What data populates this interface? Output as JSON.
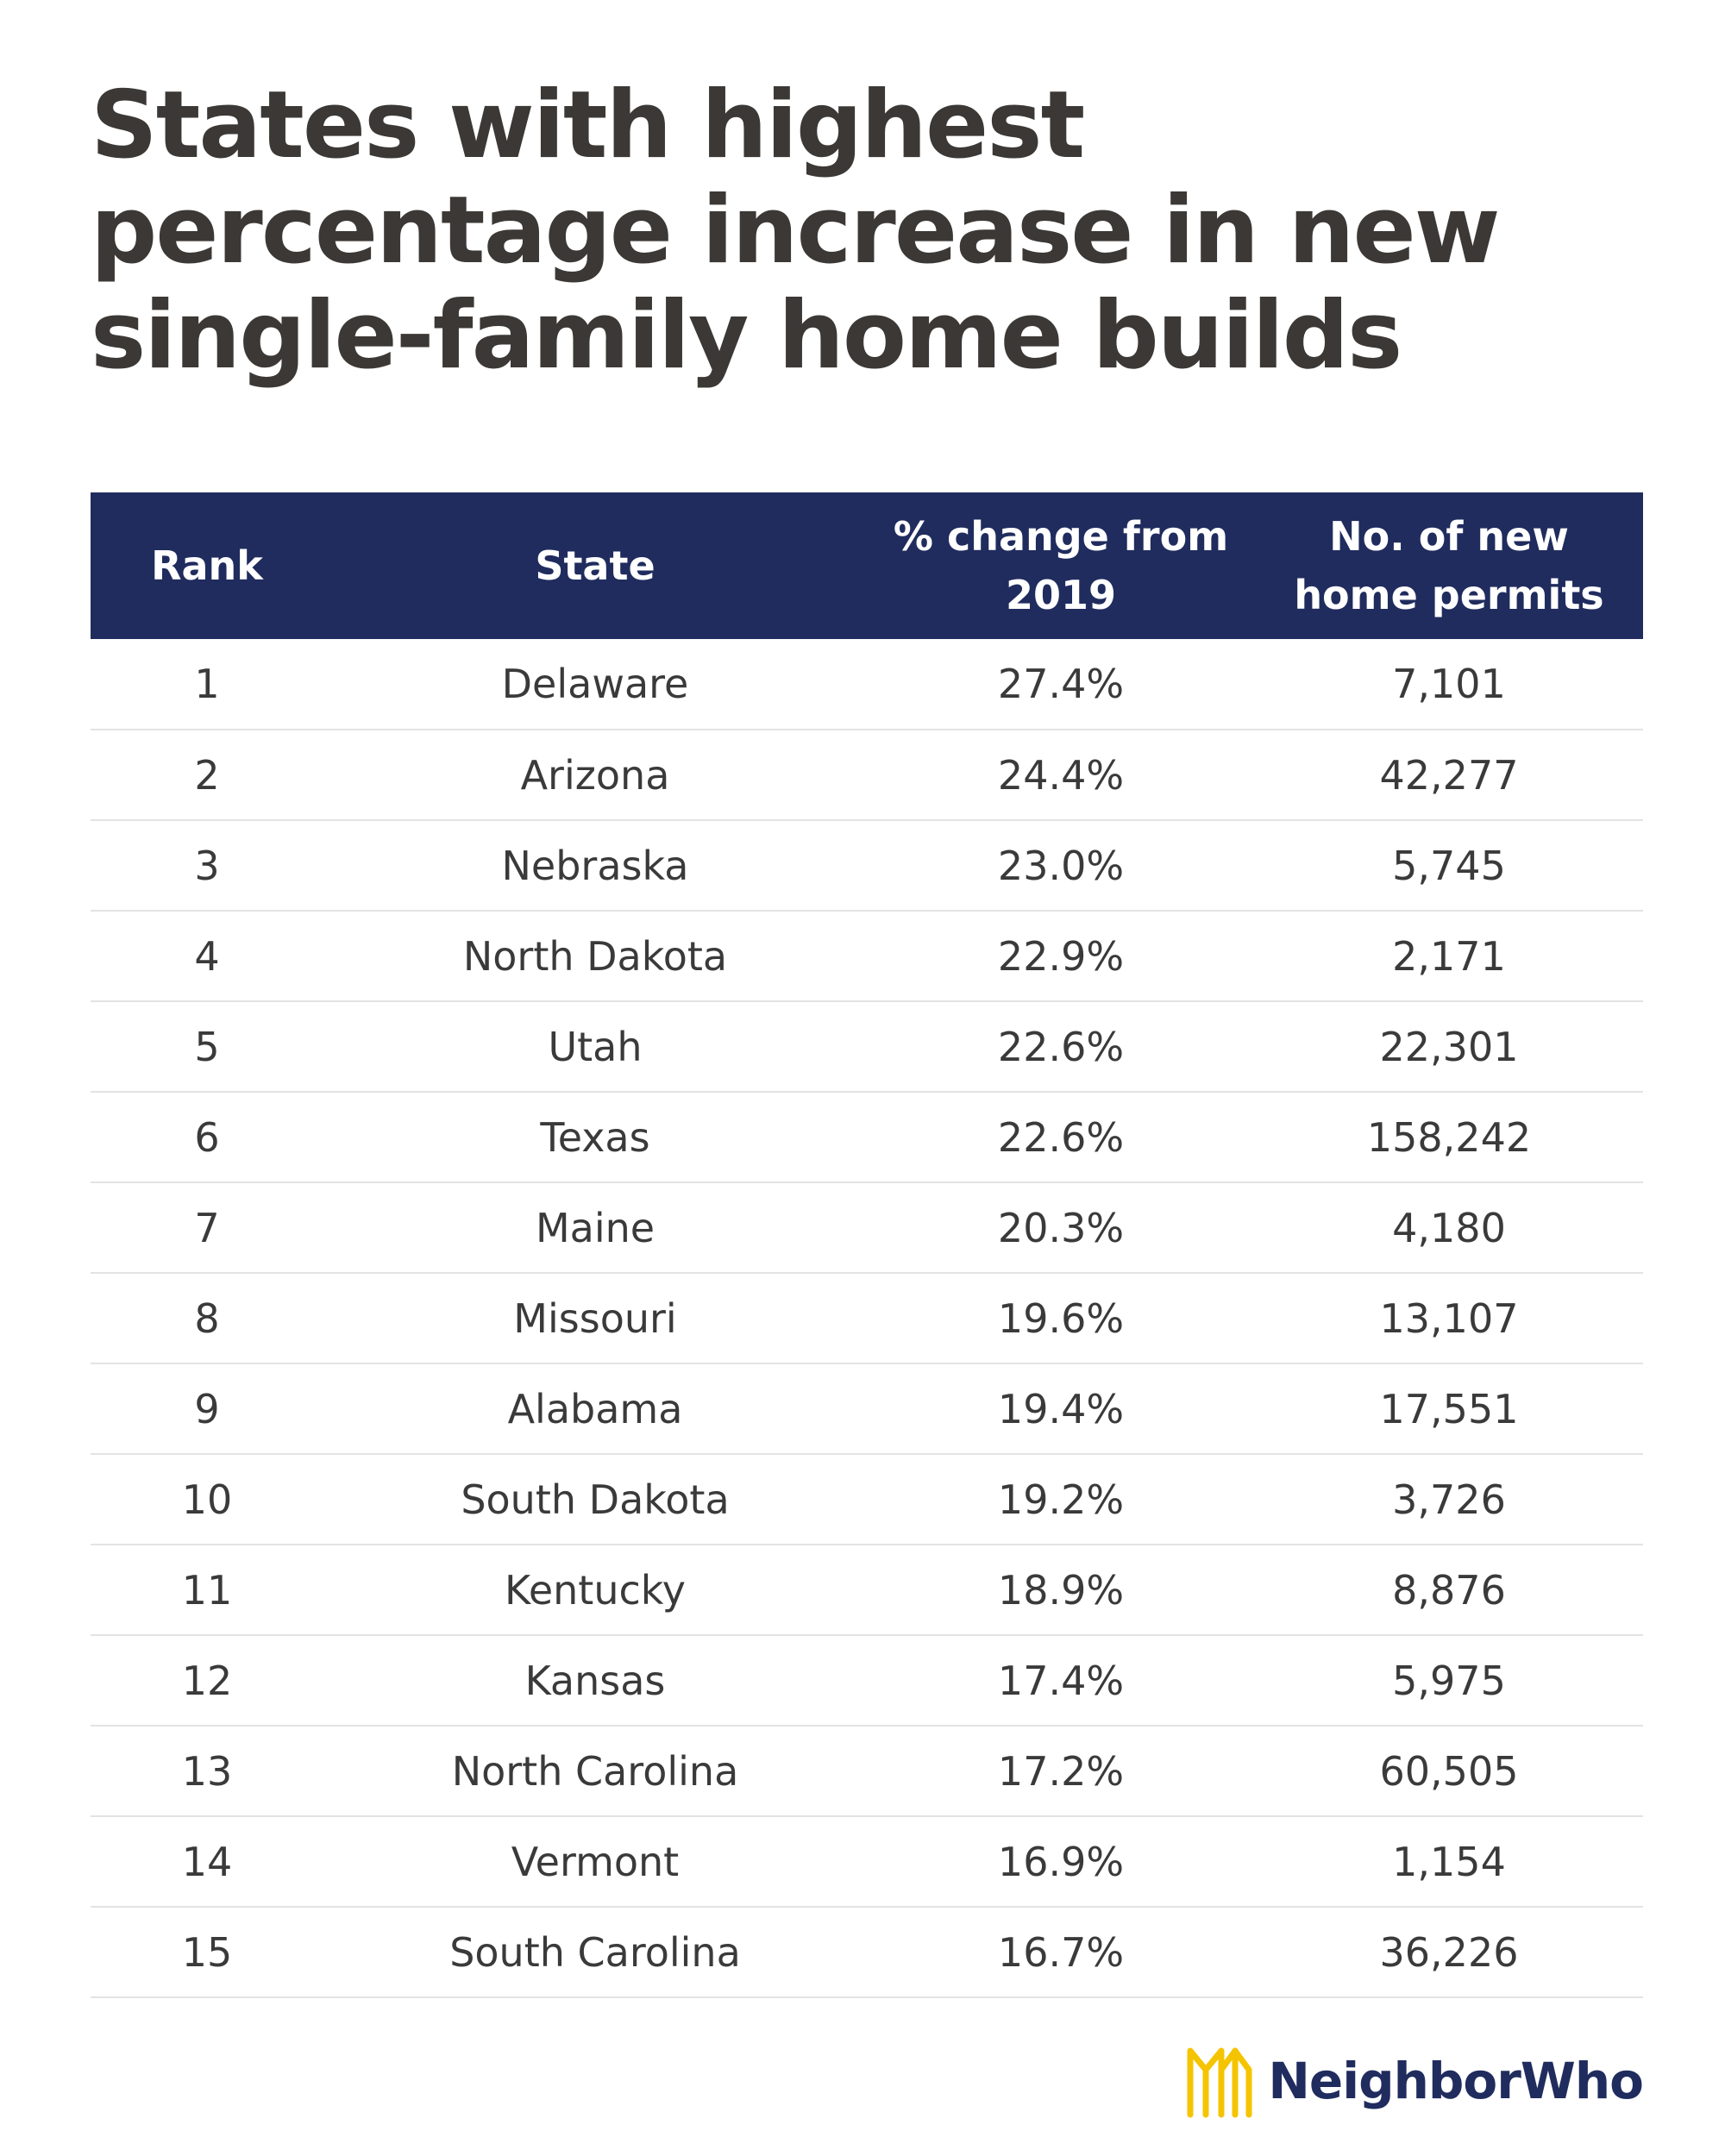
{
  "chart_data": {
    "type": "table",
    "title": "States with highest percentage increase in new single-family home builds",
    "columns": [
      "Rank",
      "State",
      "% change from 2019",
      "No. of new home permits"
    ],
    "rows": [
      {
        "rank": "1",
        "state": "Delaware",
        "pct": "27.4%",
        "permits": "7,101"
      },
      {
        "rank": "2",
        "state": "Arizona",
        "pct": "24.4%",
        "permits": "42,277"
      },
      {
        "rank": "3",
        "state": "Nebraska",
        "pct": "23.0%",
        "permits": "5,745"
      },
      {
        "rank": "4",
        "state": "North Dakota",
        "pct": "22.9%",
        "permits": "2,171"
      },
      {
        "rank": "5",
        "state": "Utah",
        "pct": "22.6%",
        "permits": "22,301"
      },
      {
        "rank": "6",
        "state": "Texas",
        "pct": "22.6%",
        "permits": "158,242"
      },
      {
        "rank": "7",
        "state": "Maine",
        "pct": "20.3%",
        "permits": "4,180"
      },
      {
        "rank": "8",
        "state": "Missouri",
        "pct": "19.6%",
        "permits": "13,107"
      },
      {
        "rank": "9",
        "state": "Alabama",
        "pct": "19.4%",
        "permits": "17,551"
      },
      {
        "rank": "10",
        "state": "South Dakota",
        "pct": "19.2%",
        "permits": "3,726"
      },
      {
        "rank": "11",
        "state": "Kentucky",
        "pct": "18.9%",
        "permits": "8,876"
      },
      {
        "rank": "12",
        "state": "Kansas",
        "pct": "17.4%",
        "permits": "5,975"
      },
      {
        "rank": "13",
        "state": "North Carolina",
        "pct": "17.2%",
        "permits": "60,505"
      },
      {
        "rank": "14",
        "state": "Vermont",
        "pct": "16.9%",
        "permits": "1,154"
      },
      {
        "rank": "15",
        "state": "South Carolina",
        "pct": "16.7%",
        "permits": "36,226"
      }
    ]
  },
  "brand": {
    "name": "NeighborWho",
    "logo_icon": "neighborwho-logo-icon",
    "logo_color": "#f5c400",
    "text_color": "#202c5e"
  },
  "colors": {
    "header_bg": "#202c5e",
    "header_text": "#ffffff",
    "title_text": "#3b3835",
    "row_divider": "#e3e3e3"
  }
}
